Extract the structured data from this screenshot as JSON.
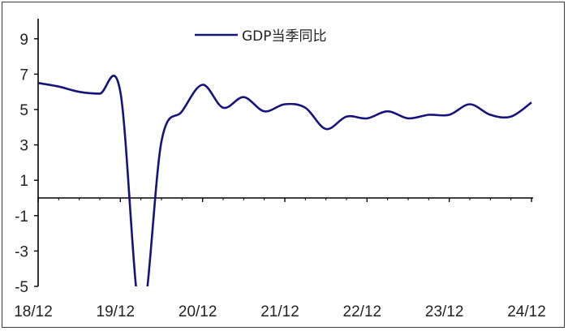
{
  "chart_data": {
    "type": "line",
    "title": "",
    "xlabel": "",
    "ylabel": "",
    "ylim": [
      -5,
      10
    ],
    "y_ticks": [
      9,
      7,
      5,
      3,
      1,
      -1,
      -3,
      -5
    ],
    "x_tick_labels": [
      "18/12",
      "19/12",
      "20/12",
      "21/12",
      "22/12",
      "23/12",
      "24/12"
    ],
    "grid": false,
    "legend_position": "top-center",
    "series": [
      {
        "name": "GDP当季同比",
        "color": "#14147a",
        "x": [
          "2018-12",
          "2019-03",
          "2019-06",
          "2019-09",
          "2019-12",
          "2020-03",
          "2020-06",
          "2020-09",
          "2020-12",
          "2021-03",
          "2021-06",
          "2021-09",
          "2021-12",
          "2022-03",
          "2022-06",
          "2022-09",
          "2022-12",
          "2023-03",
          "2023-06",
          "2023-09",
          "2023-12",
          "2024-03",
          "2024-06",
          "2024-09",
          "2024-12"
        ],
        "values": [
          6.5,
          6.3,
          6.0,
          5.9,
          6.0,
          -6.8,
          3.2,
          4.9,
          6.4,
          5.1,
          5.7,
          4.9,
          5.3,
          5.1,
          3.9,
          4.6,
          4.5,
          4.9,
          4.5,
          4.7,
          4.7,
          5.3,
          4.7,
          4.6,
          5.4
        ]
      }
    ]
  }
}
